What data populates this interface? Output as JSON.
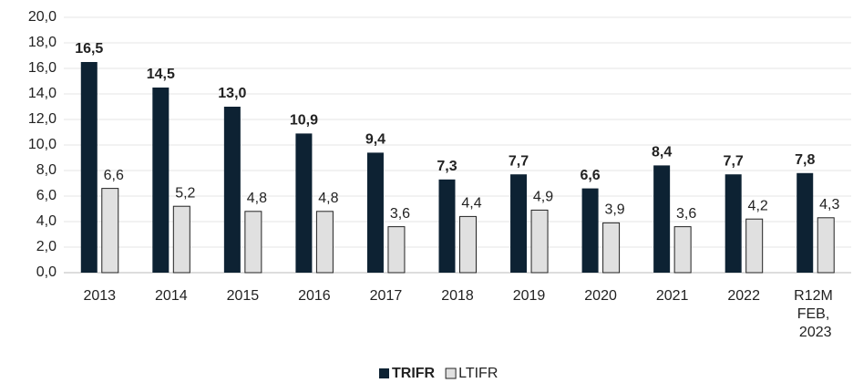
{
  "chart_data": {
    "type": "bar",
    "categories": [
      "2013",
      "2014",
      "2015",
      "2016",
      "2017",
      "2018",
      "2019",
      "2020",
      "2021",
      "2022",
      "R12M FEB, 2023"
    ],
    "series": [
      {
        "name": "TRIFR",
        "color": "#0d2233",
        "values": [
          16.5,
          14.5,
          13.0,
          10.9,
          9.4,
          7.3,
          7.7,
          6.6,
          8.4,
          7.7,
          7.8
        ],
        "value_labels": [
          "16,5",
          "14,5",
          "13,0",
          "10,9",
          "9,4",
          "7,3",
          "7,7",
          "6,6",
          "8,4",
          "7,7",
          "7,8"
        ]
      },
      {
        "name": "LTIFR",
        "color": "#e0e0e0",
        "values": [
          6.6,
          5.2,
          4.8,
          4.8,
          3.6,
          4.4,
          4.9,
          3.9,
          3.6,
          4.2,
          4.3
        ],
        "value_labels": [
          "6,6",
          "5,2",
          "4,8",
          "4,8",
          "3,6",
          "4,4",
          "4,9",
          "3,9",
          "3,6",
          "4,2",
          "4,3"
        ]
      }
    ],
    "ylim": [
      0,
      20
    ],
    "yticks": [
      {
        "value": 0,
        "label": "0,0"
      },
      {
        "value": 2,
        "label": "2,0"
      },
      {
        "value": 4,
        "label": "4,0"
      },
      {
        "value": 6,
        "label": "6,0"
      },
      {
        "value": 8,
        "label": "8,0"
      },
      {
        "value": 10,
        "label": "10,0"
      },
      {
        "value": 12,
        "label": "12,0"
      },
      {
        "value": 14,
        "label": "14,0"
      },
      {
        "value": 16,
        "label": "16,0"
      },
      {
        "value": 18,
        "label": "18,0"
      },
      {
        "value": 20,
        "label": "20,0"
      }
    ],
    "grid": true,
    "legend": "bottom"
  }
}
